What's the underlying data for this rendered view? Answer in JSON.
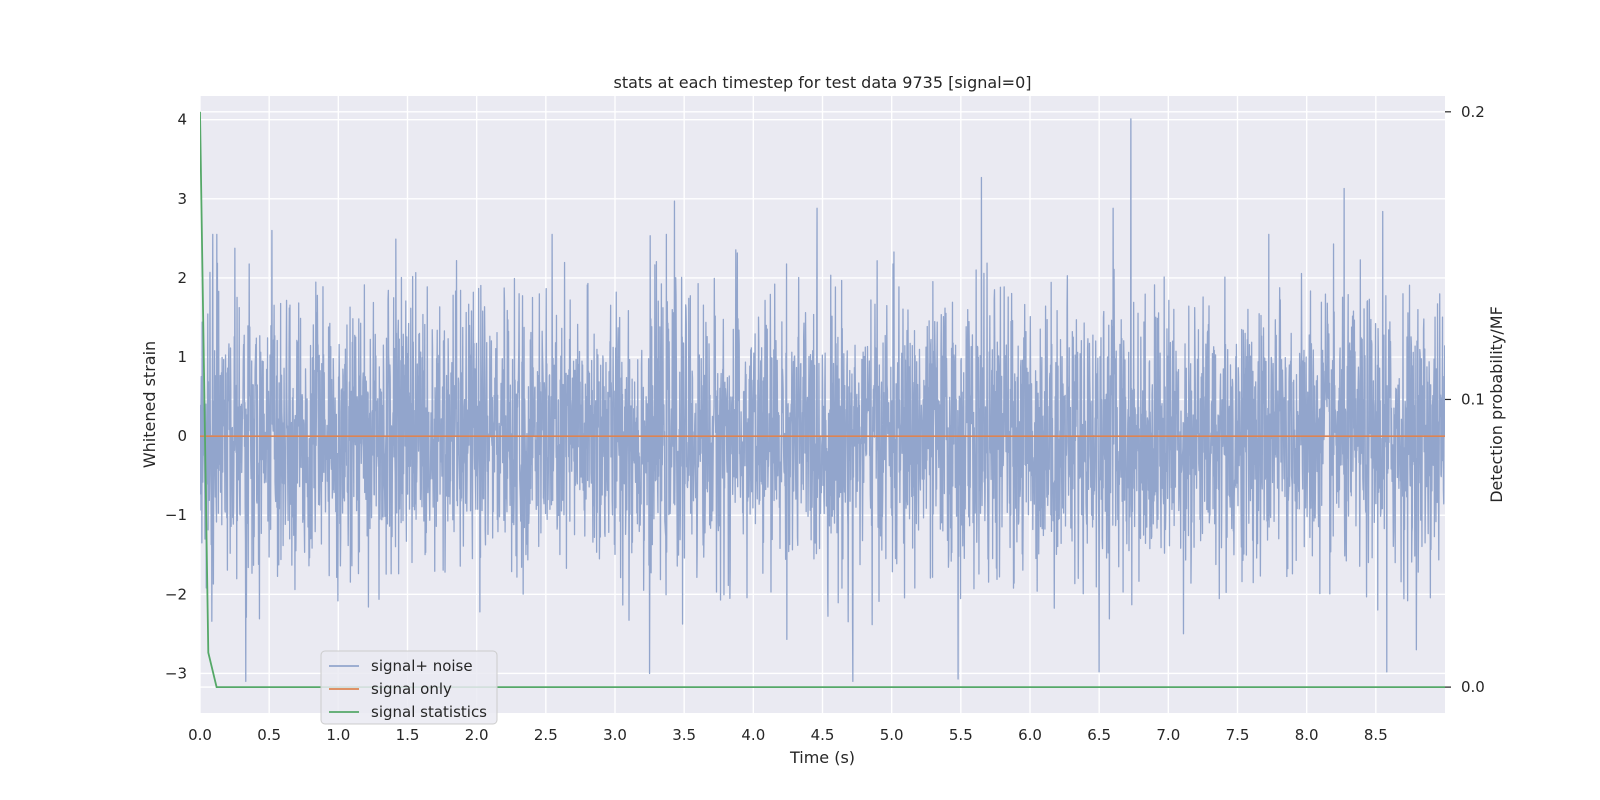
{
  "chart_data": {
    "type": "line",
    "title": "stats at each timestep for test data 9735 [signal=0]",
    "xlabel": "Time (s)",
    "ylabel": "Whitened strain",
    "ylabel_right": "Detection probability/MF",
    "xlim": [
      0.0,
      9.0
    ],
    "ylim": [
      -3.5,
      4.3
    ],
    "ylim_right": [
      -0.009,
      0.2055
    ],
    "x_ticks": [
      "0.0",
      "0.5",
      "1.0",
      "1.5",
      "2.0",
      "2.5",
      "3.0",
      "3.5",
      "4.0",
      "4.5",
      "5.0",
      "5.5",
      "6.0",
      "6.5",
      "7.0",
      "7.5",
      "8.0",
      "8.5"
    ],
    "x_tick_values": [
      0.0,
      0.5,
      1.0,
      1.5,
      2.0,
      2.5,
      3.0,
      3.5,
      4.0,
      4.5,
      5.0,
      5.5,
      6.0,
      6.5,
      7.0,
      7.5,
      8.0,
      8.5
    ],
    "y_ticks": [
      "−3",
      "−2",
      "−1",
      "0",
      "1",
      "2",
      "3",
      "4"
    ],
    "y_tick_values": [
      -3,
      -2,
      -1,
      0,
      1,
      2,
      3,
      4
    ],
    "y_ticks_right": [
      "0.0",
      "0.1",
      "0.2"
    ],
    "y_tick_values_right": [
      0.0,
      0.1,
      0.2
    ],
    "grid": true,
    "legend_position": "lower-left",
    "series": [
      {
        "name": "signal+ noise",
        "axis": "left",
        "color": "#92a5cc",
        "description_of_values": "whitened strain noise, approximately Gaussian with sd ~0.85 over 0–9 s",
        "x_range": [
          0.0,
          9.0
        ],
        "notable_peaks": [
          {
            "x": 0.52,
            "y": 2.6
          },
          {
            "x": 3.25,
            "y": 2.92
          },
          {
            "x": 3.43,
            "y": 2.97
          },
          {
            "x": 4.46,
            "y": 2.88
          },
          {
            "x": 5.65,
            "y": 3.27
          },
          {
            "x": 6.73,
            "y": 4.01
          },
          {
            "x": 6.6,
            "y": 2.88
          },
          {
            "x": 8.27,
            "y": 3.13
          },
          {
            "x": 8.55,
            "y": 2.84
          }
        ],
        "notable_troughs": [
          {
            "x": 0.33,
            "y": -3.1
          },
          {
            "x": 3.25,
            "y": -3.0
          },
          {
            "x": 4.72,
            "y": -3.1
          },
          {
            "x": 5.48,
            "y": -3.07
          },
          {
            "x": 6.5,
            "y": -2.98
          },
          {
            "x": 8.58,
            "y": -2.98
          }
        ]
      },
      {
        "name": "signal only",
        "axis": "left",
        "color": "#dd8452",
        "x": [
          0.0,
          9.0
        ],
        "y": [
          0.0,
          0.0
        ]
      },
      {
        "name": "signal statistics",
        "axis": "right",
        "color": "#55a868",
        "x": [
          0.0,
          0.06,
          0.12,
          9.0
        ],
        "y": [
          0.2,
          0.012,
          0.0,
          0.0
        ]
      }
    ]
  }
}
